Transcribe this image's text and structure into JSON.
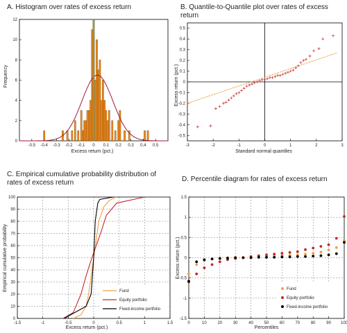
{
  "chart_data": [
    {
      "panel": "A",
      "type": "bar",
      "title": "A. Histogram over rates of excess return",
      "xlabel": "Excess return (pct.)",
      "ylabel": "Frequency",
      "xlim": [
        -0.6,
        0.6
      ],
      "ylim": [
        0,
        12
      ],
      "xticks": [
        "-0.5",
        "-0.4",
        "-0.3",
        "-0.2",
        "-0.1",
        "0",
        "0.1",
        "0.2",
        "0.3",
        "0.4",
        "0.5"
      ],
      "yticks": [
        "0",
        "2",
        "4",
        "6",
        "8",
        "10",
        "12"
      ],
      "bin_width": 0.0125,
      "bins": [
        {
          "x": -0.4,
          "count": 1
        },
        {
          "x": -0.25,
          "count": 1
        },
        {
          "x": -0.2125,
          "count": 1
        },
        {
          "x": -0.175,
          "count": 1
        },
        {
          "x": -0.15,
          "count": 2
        },
        {
          "x": -0.125,
          "count": 1
        },
        {
          "x": -0.1,
          "count": 3
        },
        {
          "x": -0.0875,
          "count": 1
        },
        {
          "x": -0.075,
          "count": 2
        },
        {
          "x": -0.0625,
          "count": 2
        },
        {
          "x": -0.05,
          "count": 3
        },
        {
          "x": -0.0375,
          "count": 3
        },
        {
          "x": -0.025,
          "count": 4
        },
        {
          "x": -0.0125,
          "count": 11
        },
        {
          "x": 0.0,
          "count": 12
        },
        {
          "x": 0.0125,
          "count": 6
        },
        {
          "x": 0.025,
          "count": 10
        },
        {
          "x": 0.0375,
          "count": 7
        },
        {
          "x": 0.05,
          "count": 8
        },
        {
          "x": 0.0625,
          "count": 4
        },
        {
          "x": 0.075,
          "count": 6
        },
        {
          "x": 0.0875,
          "count": 4
        },
        {
          "x": 0.1,
          "count": 3
        },
        {
          "x": 0.1125,
          "count": 2
        },
        {
          "x": 0.125,
          "count": 3
        },
        {
          "x": 0.15,
          "count": 2
        },
        {
          "x": 0.175,
          "count": 1
        },
        {
          "x": 0.2,
          "count": 2
        },
        {
          "x": 0.2125,
          "count": 3
        },
        {
          "x": 0.25,
          "count": 1
        },
        {
          "x": 0.2875,
          "count": 1
        },
        {
          "x": 0.4125,
          "count": 1
        },
        {
          "x": 0.4375,
          "count": 1
        }
      ],
      "normal_curve": {
        "mean": 0.03,
        "sd": 0.125,
        "peak": 6.5
      },
      "vline_x": 0.0,
      "colors": {
        "bar": "#f28c1e",
        "bar_edge": "#6b3a00",
        "curve": "#9e1b32",
        "vline": "#41b6a0"
      }
    },
    {
      "panel": "B",
      "type": "scatter",
      "title": "B. Quantile-to-Quantile plot over rates of excess return",
      "xlabel": "Standard normal quantiles",
      "ylabel": "Excess return (pct.)",
      "xlim": [
        -3,
        3
      ],
      "ylim": [
        -0.55,
        0.55
      ],
      "xticks": [
        "-3",
        "-2",
        "-1",
        "0",
        "1",
        "2",
        "3"
      ],
      "yticks": [
        "-0.5",
        "-0.4",
        "-0.3",
        "-0.2",
        "-0.1",
        "0",
        "0.1",
        "0.2",
        "0.3",
        "0.4",
        "0.5"
      ],
      "points": [
        [
          -2.6,
          -0.42
        ],
        [
          -2.1,
          -0.41
        ],
        [
          -1.9,
          -0.25
        ],
        [
          -1.75,
          -0.23
        ],
        [
          -1.6,
          -0.2
        ],
        [
          -1.5,
          -0.19
        ],
        [
          -1.4,
          -0.17
        ],
        [
          -1.3,
          -0.15
        ],
        [
          -1.2,
          -0.13
        ],
        [
          -1.1,
          -0.11
        ],
        [
          -1.0,
          -0.1
        ],
        [
          -0.9,
          -0.08
        ],
        [
          -0.8,
          -0.06
        ],
        [
          -0.7,
          -0.04
        ],
        [
          -0.6,
          -0.03
        ],
        [
          -0.5,
          -0.02
        ],
        [
          -0.4,
          -0.01
        ],
        [
          -0.3,
          0.0
        ],
        [
          -0.2,
          0.01
        ],
        [
          -0.1,
          0.02
        ],
        [
          0.0,
          0.02
        ],
        [
          0.1,
          0.03
        ],
        [
          0.2,
          0.04
        ],
        [
          0.3,
          0.04
        ],
        [
          0.4,
          0.05
        ],
        [
          0.5,
          0.06
        ],
        [
          0.6,
          0.06
        ],
        [
          0.7,
          0.07
        ],
        [
          0.8,
          0.08
        ],
        [
          0.9,
          0.09
        ],
        [
          1.0,
          0.1
        ],
        [
          1.1,
          0.11
        ],
        [
          1.2,
          0.13
        ],
        [
          1.3,
          0.15
        ],
        [
          1.4,
          0.18
        ],
        [
          1.5,
          0.2
        ],
        [
          1.6,
          0.21
        ],
        [
          1.75,
          0.24
        ],
        [
          1.9,
          0.29
        ],
        [
          2.1,
          0.31
        ],
        [
          2.25,
          0.4
        ],
        [
          2.65,
          0.43
        ]
      ],
      "reference_line": [
        [
          -3,
          -0.2
        ],
        [
          2.8,
          0.27
        ]
      ],
      "colors": {
        "marker": "#c0282d",
        "line": "#f0a040",
        "axes_zero": "#000000"
      }
    },
    {
      "panel": "C",
      "type": "line",
      "title": "C. Empirical cumulative probability distribution of rates of excess return",
      "title_lines": [
        "C. Empirical cumulative probability distribution of",
        "rates of excess return"
      ],
      "xlabel": "Excess return (pct.)",
      "ylabel": "Empirical cumulative probability",
      "xlim": [
        -1.5,
        1.5
      ],
      "ylim": [
        0,
        100
      ],
      "xticks": [
        "-1.5",
        "-1",
        "-0.5",
        "0",
        "0.5",
        "1",
        "1.5"
      ],
      "yticks": [
        "0",
        "10",
        "20",
        "30",
        "40",
        "50",
        "60",
        "70",
        "80",
        "90",
        "100"
      ],
      "legend_position": "bottom-right",
      "series": [
        {
          "name": "Fund",
          "color": "#f0a040",
          "points": [
            [
              -0.4,
              0
            ],
            [
              -0.25,
              3
            ],
            [
              -0.15,
              10
            ],
            [
              -0.1,
              20
            ],
            [
              -0.05,
              35
            ],
            [
              0.0,
              50
            ],
            [
              0.05,
              65
            ],
            [
              0.1,
              80
            ],
            [
              0.2,
              92
            ],
            [
              0.3,
              97
            ],
            [
              0.44,
              100
            ]
          ]
        },
        {
          "name": "Equity portfolio",
          "color": "#c0282d",
          "points": [
            [
              -0.6,
              0
            ],
            [
              -0.4,
              5
            ],
            [
              -0.25,
              20
            ],
            [
              -0.15,
              35
            ],
            [
              -0.05,
              48
            ],
            [
              0.05,
              60
            ],
            [
              0.15,
              72
            ],
            [
              0.25,
              85
            ],
            [
              0.45,
              95
            ],
            [
              1.0,
              100
            ]
          ]
        },
        {
          "name": "Fixed-income portfolio",
          "color": "#000000",
          "points": [
            [
              -0.58,
              0
            ],
            [
              -0.15,
              10
            ],
            [
              -0.05,
              20
            ],
            [
              0.0,
              50
            ],
            [
              0.03,
              80
            ],
            [
              0.08,
              95
            ],
            [
              0.12,
              98
            ],
            [
              0.38,
              100
            ]
          ]
        }
      ]
    },
    {
      "panel": "D",
      "type": "scatter",
      "title": "D. Percentile diagram for rates of excess return",
      "xlabel": "Percentiles",
      "ylabel": "Excess return (pct.)",
      "xlim": [
        0,
        100
      ],
      "ylim": [
        -1.5,
        1.5
      ],
      "xticks": [
        "0",
        "10",
        "20",
        "30",
        "40",
        "50",
        "60",
        "70",
        "80",
        "90",
        "100"
      ],
      "yticks": [
        "-1.5",
        "-1",
        "-0.5",
        "0",
        "0.5",
        "1",
        "1.5"
      ],
      "legend_position": "bottom-right",
      "series": [
        {
          "name": "Fund",
          "color": "#f0a040",
          "points": [
            [
              0,
              -0.4
            ],
            [
              5,
              -0.17
            ],
            [
              10,
              -0.07
            ],
            [
              15,
              -0.03
            ],
            [
              20,
              -0.01
            ],
            [
              25,
              0.0
            ],
            [
              30,
              0.01
            ],
            [
              35,
              0.01
            ],
            [
              40,
              0.02
            ],
            [
              45,
              0.02
            ],
            [
              50,
              0.03
            ],
            [
              55,
              0.04
            ],
            [
              60,
              0.05
            ],
            [
              65,
              0.06
            ],
            [
              70,
              0.07
            ],
            [
              75,
              0.09
            ],
            [
              80,
              0.11
            ],
            [
              85,
              0.14
            ],
            [
              90,
              0.19
            ],
            [
              95,
              0.25
            ],
            [
              100,
              0.43
            ]
          ]
        },
        {
          "name": "Equity portfolio",
          "color": "#c0282d",
          "points": [
            [
              0,
              -0.6
            ],
            [
              5,
              -0.4
            ],
            [
              10,
              -0.25
            ],
            [
              15,
              -0.17
            ],
            [
              20,
              -0.1
            ],
            [
              25,
              -0.05
            ],
            [
              30,
              -0.02
            ],
            [
              35,
              0.0
            ],
            [
              40,
              0.03
            ],
            [
              45,
              0.05
            ],
            [
              50,
              0.07
            ],
            [
              55,
              0.09
            ],
            [
              60,
              0.11
            ],
            [
              65,
              0.13
            ],
            [
              70,
              0.15
            ],
            [
              75,
              0.2
            ],
            [
              80,
              0.24
            ],
            [
              85,
              0.28
            ],
            [
              90,
              0.32
            ],
            [
              95,
              0.48
            ],
            [
              100,
              1.02
            ]
          ]
        },
        {
          "name": "Fixed-income portfolio",
          "color": "#000000",
          "points": [
            [
              0,
              -0.58
            ],
            [
              5,
              -0.1
            ],
            [
              10,
              -0.05
            ],
            [
              15,
              -0.03
            ],
            [
              20,
              -0.02
            ],
            [
              25,
              -0.01
            ],
            [
              30,
              0.0
            ],
            [
              35,
              0.0
            ],
            [
              40,
              0.0
            ],
            [
              45,
              0.01
            ],
            [
              50,
              0.01
            ],
            [
              55,
              0.01
            ],
            [
              60,
              0.02
            ],
            [
              65,
              0.02
            ],
            [
              70,
              0.03
            ],
            [
              75,
              0.03
            ],
            [
              80,
              0.04
            ],
            [
              85,
              0.05
            ],
            [
              90,
              0.07
            ],
            [
              95,
              0.1
            ],
            [
              100,
              0.38
            ]
          ]
        }
      ]
    }
  ]
}
